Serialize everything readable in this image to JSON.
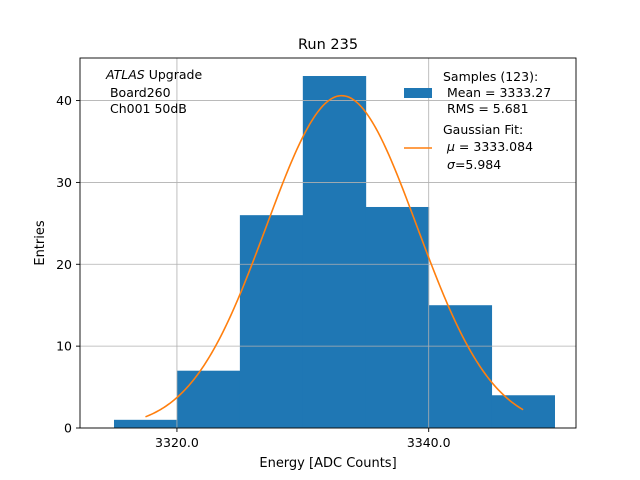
{
  "chart_data": {
    "type": "bar",
    "title": "Run 235",
    "xlabel": "Energy [ADC Counts]",
    "ylabel": "Entries",
    "xlim": [
      3312.3,
      3351.7
    ],
    "ylim": [
      0,
      45.2
    ],
    "grid": true,
    "x_ticks": [
      {
        "value": 3320,
        "label": "3320.0"
      },
      {
        "value": 3340,
        "label": "3340.0"
      }
    ],
    "y_ticks": [
      {
        "value": 0,
        "label": "0"
      },
      {
        "value": 10,
        "label": "10"
      },
      {
        "value": 20,
        "label": "20"
      },
      {
        "value": 30,
        "label": "30"
      },
      {
        "value": 40,
        "label": "40"
      }
    ],
    "bins": [
      {
        "start": 3315.0,
        "end": 3320.0,
        "value": 1
      },
      {
        "start": 3320.0,
        "end": 3325.0,
        "value": 7
      },
      {
        "start": 3325.0,
        "end": 3330.0,
        "value": 26
      },
      {
        "start": 3330.0,
        "end": 3335.0,
        "value": 43
      },
      {
        "start": 3335.0,
        "end": 3340.0,
        "value": 27
      },
      {
        "start": 3340.0,
        "end": 3345.0,
        "value": 15
      },
      {
        "start": 3345.0,
        "end": 3350.0,
        "value": 4
      }
    ],
    "fit": {
      "type": "gaussian",
      "mu": 3333.084,
      "sigma": 5.984,
      "amplitude": 40.6,
      "x_range": [
        3317.5,
        3347.5
      ]
    },
    "colors": {
      "hist": "#1f77b4",
      "fit": "#ff7f0e",
      "grid": "#b0b0b0"
    },
    "annotation": {
      "line1_italic": "ATLAS",
      "line1_rest": " Upgrade",
      "line2": " Board260",
      "line3": " Ch001 50dB"
    },
    "legend": {
      "placement": "top-right",
      "samples": {
        "line1": "Samples (123):",
        "line2": " Mean = 3333.27",
        "line3": " RMS = 5.681"
      },
      "fit": {
        "line1": "Gaussian Fit:",
        "mu_symbol": "μ",
        "mu_rest": " = 3333.084",
        "sigma_symbol": "σ",
        "sigma_rest": "=5.984"
      }
    }
  }
}
